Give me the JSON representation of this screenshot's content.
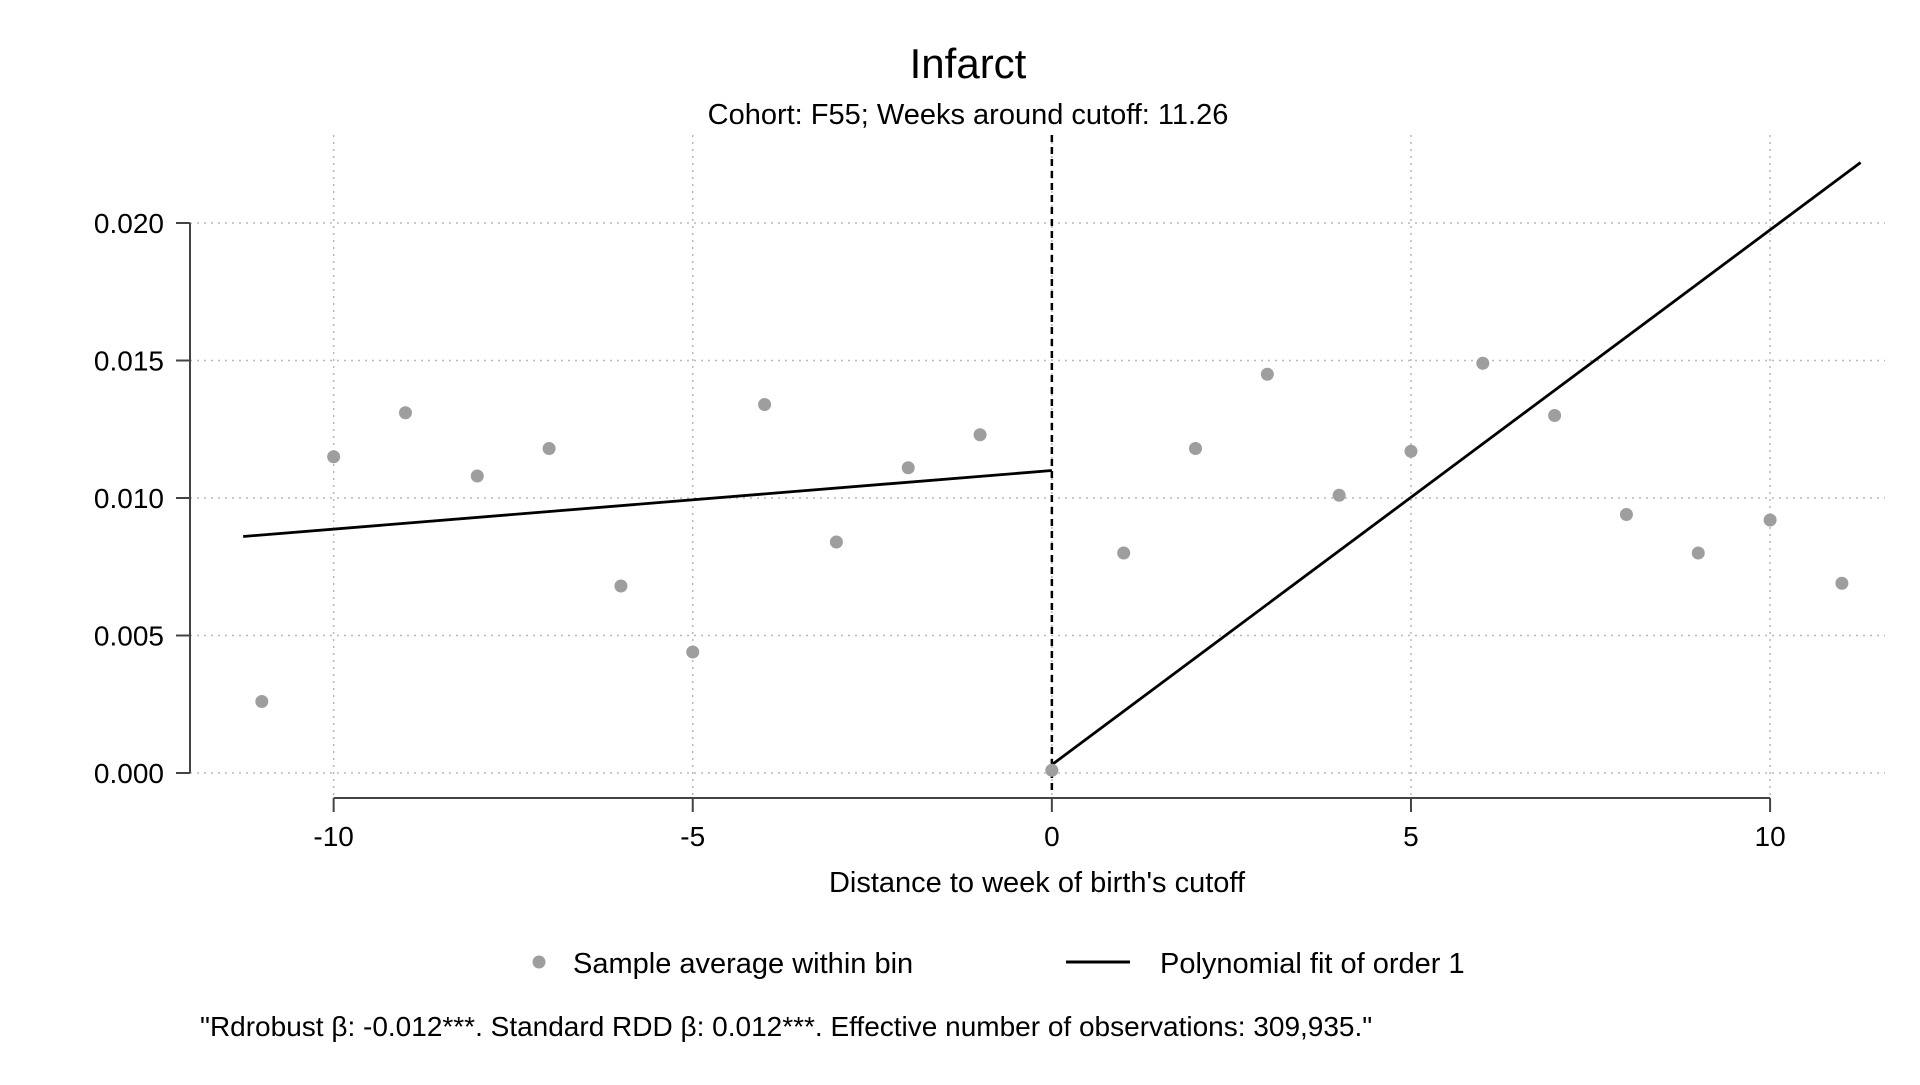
{
  "chart_data": {
    "type": "scatter",
    "title": "Infarct",
    "subtitle": "Cohort: F55; Weeks around cutoff: 11.26",
    "xlabel": "Distance to week of birth's cutoff",
    "ylabel": "",
    "xlim": [
      -12,
      11.6
    ],
    "ylim": [
      -0.0008,
      0.0232
    ],
    "x_ticks": [
      -10,
      -5,
      0,
      5,
      10
    ],
    "x_tick_labels": [
      "-10",
      "-5",
      "0",
      "5",
      "10"
    ],
    "y_ticks": [
      0.0,
      0.005,
      0.01,
      0.015,
      0.02
    ],
    "y_tick_labels": [
      "0.000",
      "0.005",
      "0.010",
      "0.015",
      "0.020"
    ],
    "grid": true,
    "legend_position": "bottom",
    "cutoff_x": 0,
    "series": [
      {
        "name": "Sample average within bin",
        "kind": "scatter",
        "color": "#9e9e9e",
        "x": [
          -11,
          -10,
          -9,
          -8,
          -7,
          -6,
          -5,
          -4,
          -3,
          -2,
          -1,
          0,
          1,
          2,
          3,
          4,
          5,
          6,
          7,
          8,
          9,
          10,
          11
        ],
        "y": [
          0.0026,
          0.0115,
          0.0131,
          0.0108,
          0.0118,
          0.0068,
          0.0044,
          0.0134,
          0.0084,
          0.0111,
          0.0123,
          0.0001,
          0.008,
          0.0118,
          0.0145,
          0.0101,
          0.0117,
          0.0149,
          0.013,
          0.0094,
          0.008,
          0.0092,
          0.0069
        ]
      },
      {
        "name": "Polynomial fit of order 1",
        "kind": "line",
        "color": "#000000",
        "segments": [
          {
            "x": [
              -11.26,
              0
            ],
            "y": [
              0.0086,
              0.011
            ]
          },
          {
            "x": [
              0,
              11.26
            ],
            "y": [
              0.0003,
              0.0222
            ]
          }
        ]
      }
    ],
    "note": "\"Rdrobust β: -0.012***. Standard RDD β: 0.012***. Effective number of observations: 309,935.\""
  }
}
